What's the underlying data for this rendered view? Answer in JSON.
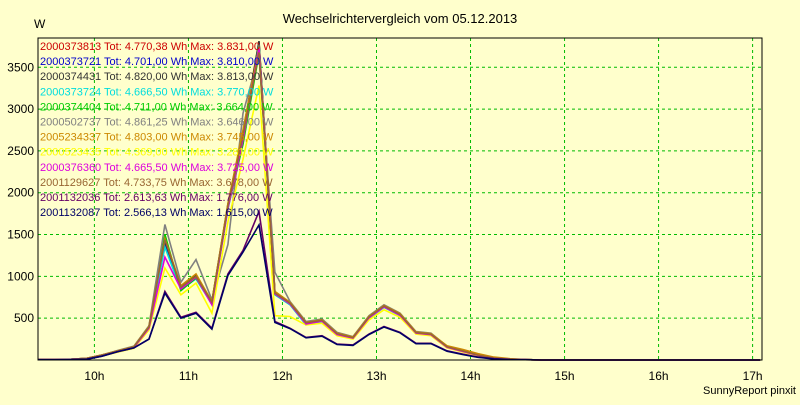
{
  "chart_data": {
    "type": "line",
    "title": "Wechselrichtervergleich vom 05.12.2013",
    "ylabel": "W",
    "xlabel": "",
    "footer": "SunnyReport pinxit",
    "xlim": [
      9.4,
      17.1
    ],
    "ylim": [
      0,
      3850
    ],
    "grid": true,
    "legend_position": "top-left",
    "x_ticks": [
      {
        "value": 10,
        "label": "10h"
      },
      {
        "value": 11,
        "label": "11h"
      },
      {
        "value": 12,
        "label": "12h"
      },
      {
        "value": 13,
        "label": "13h"
      },
      {
        "value": 14,
        "label": "14h"
      },
      {
        "value": 15,
        "label": "15h"
      },
      {
        "value": 16,
        "label": "16h"
      },
      {
        "value": 17,
        "label": "17h"
      }
    ],
    "y_ticks": [
      {
        "value": 500,
        "label": "500"
      },
      {
        "value": 1000,
        "label": "1000"
      },
      {
        "value": 1500,
        "label": "1500"
      },
      {
        "value": 2000,
        "label": "2000"
      },
      {
        "value": 2500,
        "label": "2500"
      },
      {
        "value": 3000,
        "label": "3000"
      },
      {
        "value": 3500,
        "label": "3500"
      }
    ],
    "x": [
      9.4,
      9.58,
      9.75,
      9.92,
      10.08,
      10.25,
      10.42,
      10.58,
      10.75,
      10.92,
      11.08,
      11.25,
      11.42,
      11.58,
      11.75,
      11.92,
      12.08,
      12.25,
      12.42,
      12.58,
      12.75,
      12.92,
      13.08,
      13.25,
      13.42,
      13.58,
      13.75,
      13.92,
      14.08,
      14.25,
      14.42,
      14.58,
      14.75,
      14.92,
      15.08,
      15.25,
      15.42,
      15.58,
      15.75,
      15.92,
      16.08,
      16.25,
      16.42,
      16.58,
      16.75,
      16.92,
      17.08
    ],
    "series": [
      {
        "name": "2000373813",
        "legend": "2000373813 Tot: 4.770,38 Wh Max: 3.831,00 W",
        "color": "#cc0000",
        "values": [
          5,
          5,
          8,
          20,
          60,
          110,
          160,
          400,
          1400,
          870,
          1000,
          690,
          1850,
          2700,
          3800,
          800,
          680,
          450,
          480,
          320,
          270,
          520,
          650,
          550,
          330,
          310,
          160,
          110,
          60,
          25,
          10,
          5,
          0,
          0,
          0,
          0,
          0,
          0,
          0,
          0,
          0,
          0,
          0,
          0,
          0,
          0,
          0
        ]
      },
      {
        "name": "2000373721",
        "legend": "2000373721 Tot: 4.701,00 Wh Max: 3.810,00 W",
        "color": "#0000cc",
        "values": [
          5,
          5,
          8,
          18,
          55,
          105,
          155,
          390,
          1380,
          860,
          990,
          680,
          1830,
          2650,
          3780,
          790,
          670,
          440,
          470,
          310,
          265,
          510,
          640,
          540,
          325,
          305,
          155,
          105,
          55,
          22,
          8,
          5,
          0,
          0,
          0,
          0,
          0,
          0,
          0,
          0,
          0,
          0,
          0,
          0,
          0,
          0,
          0
        ]
      },
      {
        "name": "2000374431",
        "legend": "2000374431 Tot: 4.820,00 Wh Max: 3.813,00 W",
        "color": "#333333",
        "values": [
          5,
          5,
          8,
          20,
          60,
          110,
          160,
          400,
          1420,
          880,
          1010,
          700,
          1860,
          2720,
          3813,
          810,
          690,
          455,
          485,
          325,
          275,
          525,
          655,
          555,
          335,
          315,
          160,
          110,
          60,
          25,
          10,
          5,
          0,
          0,
          0,
          0,
          0,
          0,
          0,
          0,
          0,
          0,
          0,
          0,
          0,
          0,
          0
        ]
      },
      {
        "name": "2000373724",
        "legend": "2000373724 Tot: 4.666,50 Wh Max: 3.770,00 W",
        "color": "#00dddd",
        "values": [
          5,
          5,
          8,
          18,
          55,
          100,
          150,
          380,
          1350,
          840,
          970,
          670,
          1800,
          2620,
          3770,
          780,
          660,
          420,
          460,
          300,
          260,
          500,
          630,
          530,
          320,
          300,
          150,
          100,
          55,
          22,
          8,
          5,
          0,
          0,
          0,
          0,
          0,
          0,
          0,
          0,
          0,
          0,
          0,
          0,
          0,
          0,
          0
        ]
      },
      {
        "name": "2000374404",
        "legend": "2000374404 Tot: 4.711,00 Wh Max: 3.664,00 W",
        "color": "#00cc00",
        "values": [
          5,
          5,
          8,
          18,
          55,
          105,
          155,
          390,
          1500,
          830,
          980,
          680,
          1820,
          2580,
          3664,
          790,
          670,
          440,
          470,
          310,
          265,
          510,
          640,
          540,
          325,
          305,
          155,
          105,
          55,
          22,
          8,
          5,
          0,
          0,
          0,
          0,
          0,
          0,
          0,
          0,
          0,
          0,
          0,
          0,
          0,
          0,
          0
        ]
      },
      {
        "name": "2000502737",
        "legend": "2000502737 Tot: 4.861,25 Wh Max: 3.646,00 W",
        "color": "#808080",
        "values": [
          5,
          5,
          8,
          20,
          60,
          115,
          165,
          410,
          1620,
          930,
          1200,
          720,
          1380,
          2950,
          3646,
          1050,
          700,
          460,
          490,
          330,
          280,
          530,
          660,
          560,
          340,
          320,
          165,
          115,
          65,
          28,
          12,
          5,
          0,
          0,
          0,
          0,
          0,
          0,
          0,
          0,
          0,
          0,
          0,
          0,
          0,
          0,
          0
        ]
      },
      {
        "name": "2005234337",
        "legend": "2005234337 Tot: 4.803,00 Wh Max: 3.745,00 W",
        "color": "#cc8800",
        "values": [
          5,
          5,
          8,
          20,
          60,
          110,
          160,
          400,
          1450,
          890,
          1030,
          700,
          1870,
          2750,
          3745,
          820,
          690,
          450,
          480,
          320,
          275,
          520,
          650,
          555,
          335,
          315,
          170,
          125,
          75,
          35,
          15,
          5,
          0,
          0,
          0,
          0,
          0,
          0,
          0,
          0,
          0,
          0,
          0,
          0,
          0,
          0,
          0
        ]
      },
      {
        "name": "2000523435",
        "legend": "2000523435 Tot: 4.369,00 Wh Max: 3.281,00 W",
        "color": "#ffff00",
        "values": [
          5,
          5,
          8,
          15,
          50,
          95,
          140,
          360,
          1100,
          780,
          920,
          560,
          1650,
          2400,
          3281,
          530,
          520,
          420,
          440,
          290,
          250,
          480,
          600,
          510,
          310,
          290,
          145,
          95,
          50,
          20,
          8,
          5,
          0,
          0,
          0,
          0,
          0,
          0,
          0,
          0,
          0,
          0,
          0,
          0,
          0,
          0,
          0
        ]
      },
      {
        "name": "2000376360",
        "legend": "2000376360 Tot: 4.665,50 Wh Max: 3.725,00 W",
        "color": "#dd00dd",
        "values": [
          5,
          5,
          8,
          18,
          55,
          100,
          150,
          380,
          1230,
          850,
          990,
          660,
          1810,
          2630,
          3725,
          790,
          670,
          430,
          465,
          305,
          262,
          505,
          635,
          535,
          322,
          302,
          152,
          102,
          55,
          22,
          8,
          5,
          0,
          0,
          0,
          0,
          0,
          0,
          0,
          0,
          0,
          0,
          0,
          0,
          0,
          0,
          0
        ]
      },
      {
        "name": "2001129627",
        "legend": "2001129627 Tot: 4.733,75 Wh Max: 3.678,00 W",
        "color": "#996633",
        "values": [
          5,
          5,
          8,
          20,
          58,
          108,
          158,
          395,
          1440,
          870,
          1000,
          690,
          1840,
          2680,
          3678,
          800,
          680,
          445,
          475,
          315,
          268,
          515,
          645,
          545,
          328,
          308,
          158,
          108,
          58,
          24,
          10,
          5,
          0,
          0,
          0,
          0,
          0,
          0,
          0,
          0,
          0,
          0,
          0,
          0,
          0,
          0,
          0
        ]
      },
      {
        "name": "2001132036",
        "legend": "2001132036 Tot: 2.613,63 Wh Max: 1.776,00 W",
        "color": "#660066",
        "values": [
          3,
          3,
          5,
          10,
          45,
          100,
          145,
          250,
          820,
          510,
          570,
          380,
          1030,
          1310,
          1776,
          460,
          380,
          270,
          290,
          190,
          180,
          310,
          400,
          330,
          200,
          200,
          110,
          70,
          35,
          15,
          5,
          3,
          0,
          0,
          0,
          0,
          0,
          0,
          0,
          0,
          0,
          0,
          0,
          0,
          0,
          0,
          0
        ]
      },
      {
        "name": "2001132087",
        "legend": "2001132087 Tot: 2.566,13 Wh Max: 1.615,00 W",
        "color": "#000066",
        "values": [
          3,
          3,
          5,
          10,
          45,
          100,
          145,
          250,
          800,
          500,
          560,
          370,
          1010,
          1290,
          1615,
          450,
          375,
          265,
          285,
          185,
          175,
          305,
          395,
          325,
          195,
          195,
          105,
          65,
          32,
          12,
          5,
          3,
          0,
          0,
          0,
          0,
          0,
          0,
          0,
          0,
          0,
          0,
          0,
          0,
          0,
          0,
          0
        ]
      }
    ]
  }
}
